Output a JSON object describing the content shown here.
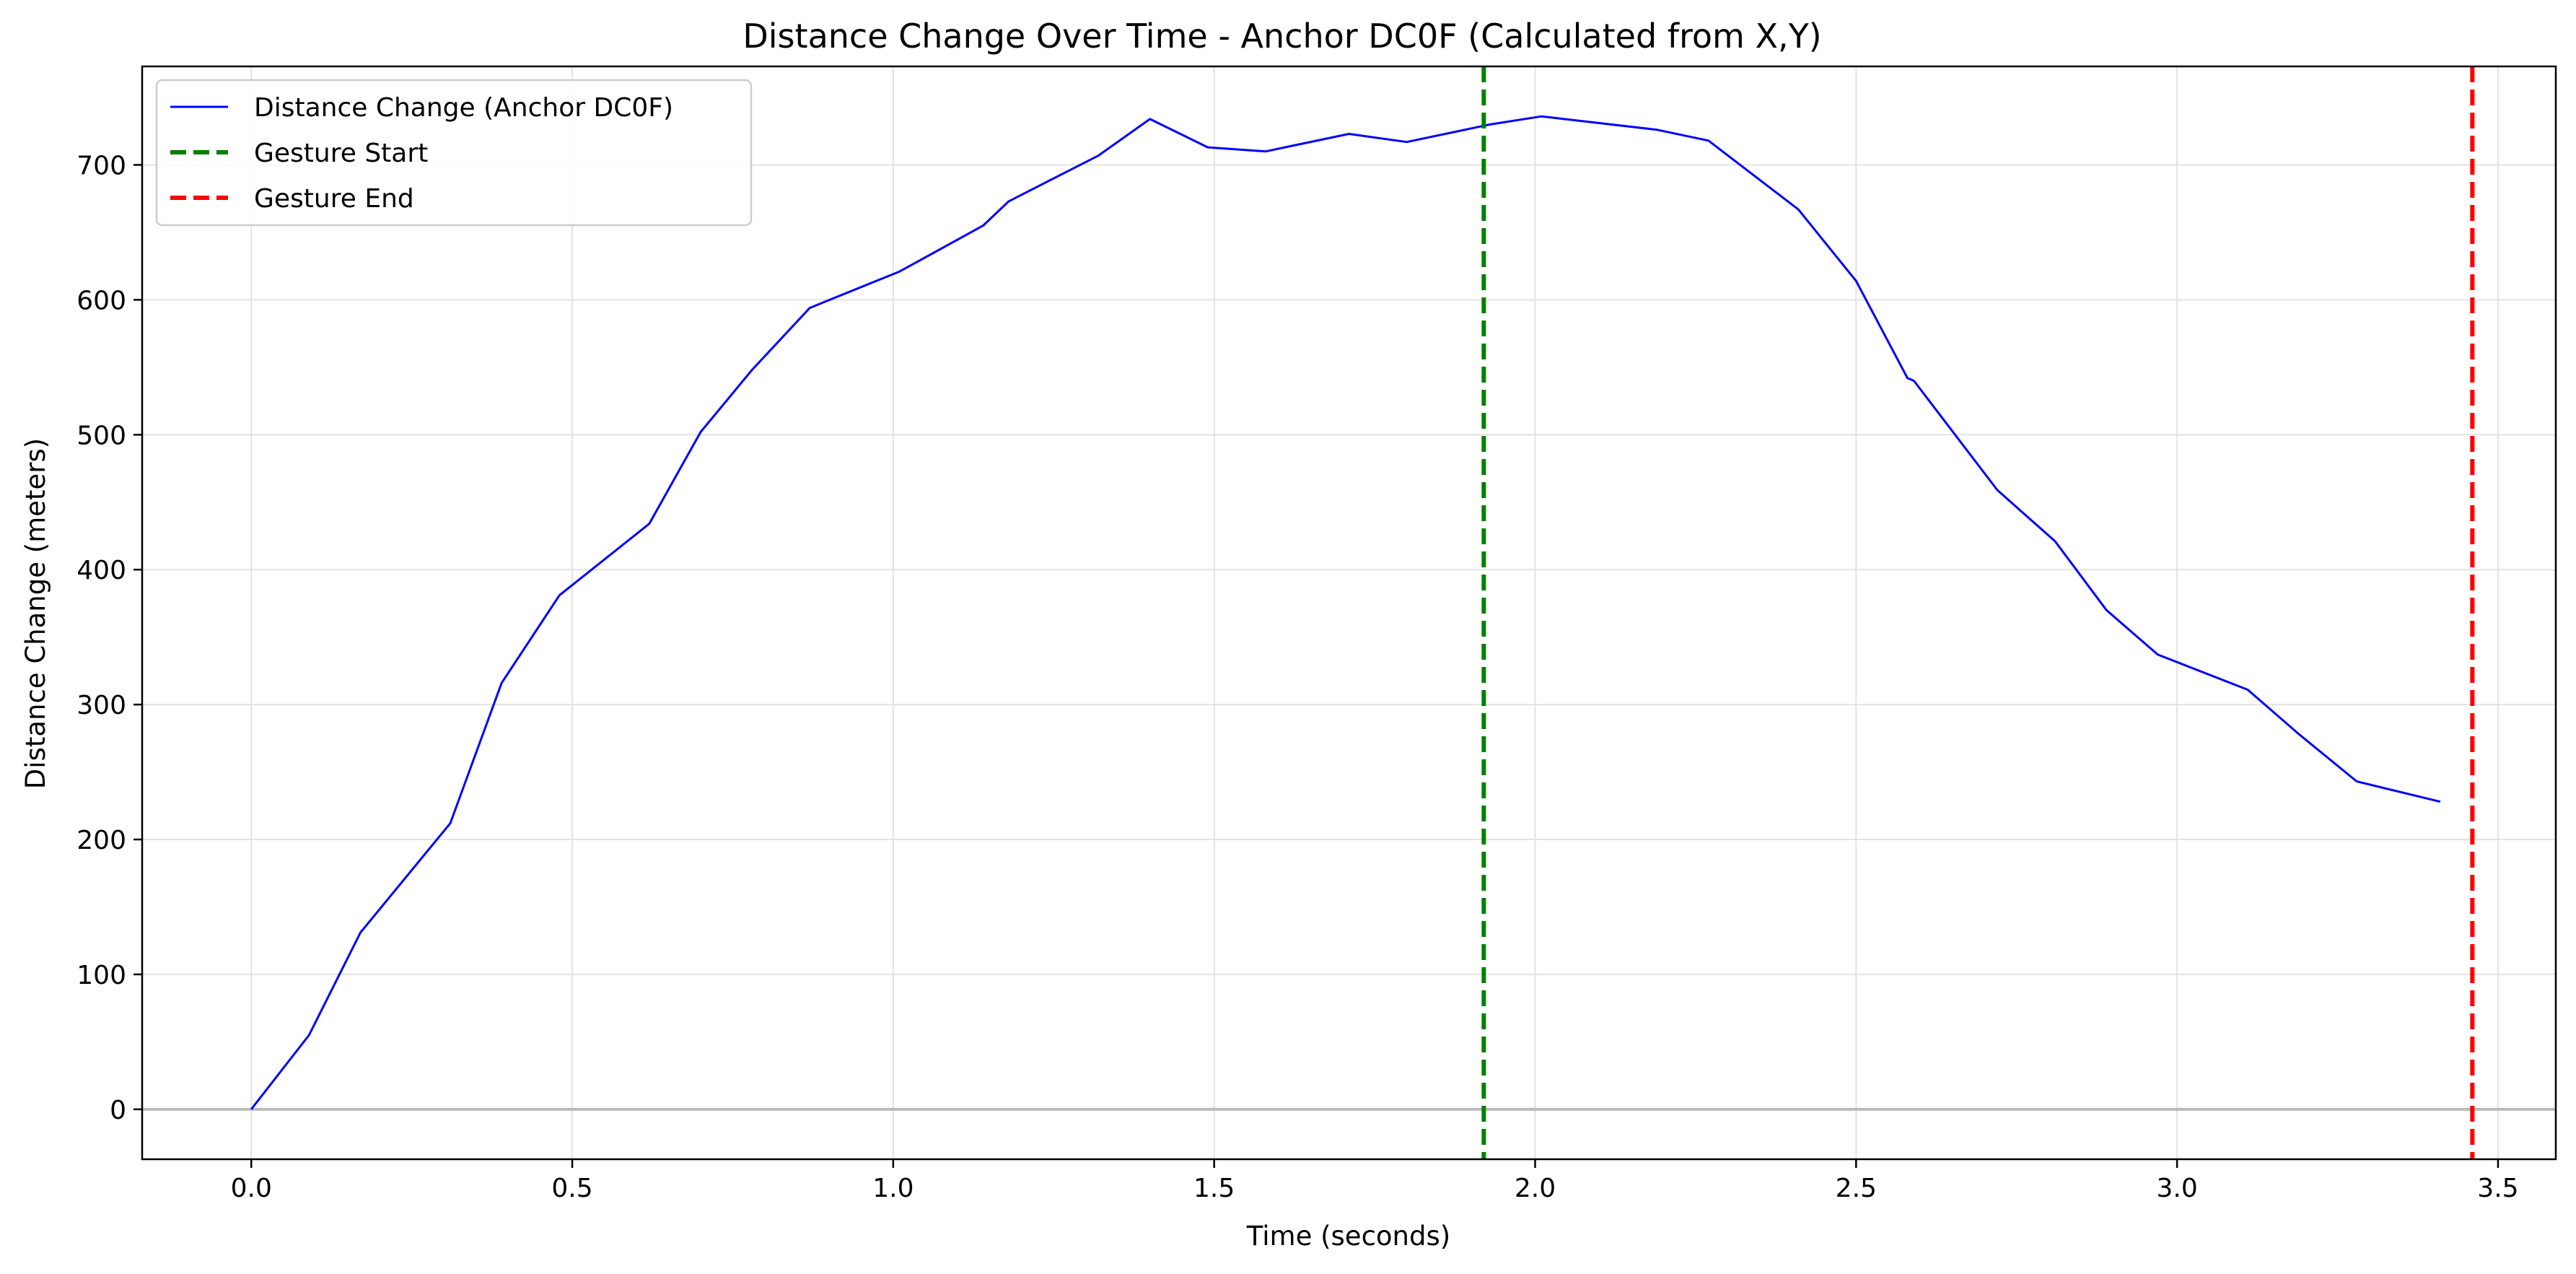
{
  "chart_data": {
    "type": "line",
    "title": "Distance Change Over Time - Anchor DC0F (Calculated from X,Y)",
    "xlabel": "Time (seconds)",
    "ylabel": "Distance Change (meters)",
    "xlim": [
      -0.17,
      3.59
    ],
    "ylim": [
      -37,
      773
    ],
    "xticks": [
      0.0,
      0.5,
      1.0,
      1.5,
      2.0,
      2.5,
      3.0,
      3.5
    ],
    "xtick_labels": [
      "0.0",
      "0.5",
      "1.0",
      "1.5",
      "2.0",
      "2.5",
      "3.0",
      "3.5"
    ],
    "yticks": [
      0,
      100,
      200,
      300,
      400,
      500,
      600,
      700
    ],
    "ytick_labels": [
      "0",
      "100",
      "200",
      "300",
      "400",
      "500",
      "600",
      "700"
    ],
    "grid": true,
    "legend_position": "upper-left",
    "series": [
      {
        "name": "Distance Change (Anchor DC0F)",
        "color": "#0000ff",
        "style": "solid",
        "x": [
          0.0,
          0.09,
          0.17,
          0.31,
          0.39,
          0.48,
          0.62,
          0.7,
          0.78,
          0.87,
          1.01,
          1.14,
          1.18,
          1.32,
          1.4,
          1.49,
          1.58,
          1.71,
          1.8,
          1.93,
          2.01,
          2.19,
          2.27,
          2.41,
          2.5,
          2.58,
          2.59,
          2.72,
          2.81,
          2.89,
          2.97,
          3.11,
          3.19,
          3.28,
          3.41
        ],
        "y": [
          0,
          55,
          131,
          212,
          316,
          381,
          434,
          502,
          548,
          594,
          621,
          655,
          673,
          707,
          734,
          713,
          710,
          723,
          717,
          730,
          736,
          726,
          718,
          667,
          614,
          542,
          540,
          459,
          421,
          370,
          337,
          311,
          278,
          243,
          228
        ]
      }
    ],
    "vlines": [
      {
        "name": "Gesture Start",
        "x": 1.92,
        "color": "#008000",
        "style": "dashed"
      },
      {
        "name": "Gesture End",
        "x": 3.46,
        "color": "#ff0000",
        "style": "dashed"
      }
    ],
    "hlines": [
      {
        "y": 0,
        "color": "#bbbbbb"
      }
    ]
  }
}
